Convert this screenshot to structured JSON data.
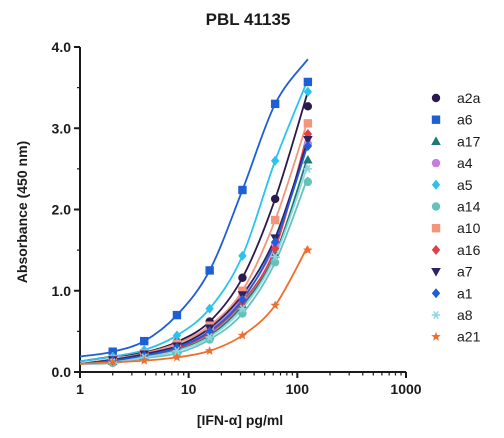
{
  "chart_data": {
    "type": "scatter",
    "title": "PBL 41135",
    "xlabel": "[IFN-α] pg/ml",
    "ylabel": "Absorbance (450 nm)",
    "x_scale": "log",
    "xlim": [
      1,
      1000
    ],
    "ylim": [
      0,
      4
    ],
    "x_ticks": [
      1,
      10,
      100,
      1000
    ],
    "x_tick_labels": [
      "1",
      "10",
      "100",
      "1000"
    ],
    "y_ticks": [
      0,
      1,
      2,
      3,
      4
    ],
    "y_tick_labels": [
      "0.0",
      "1.0",
      "2.0",
      "3.0",
      "4.0"
    ],
    "legend_position": "right",
    "grid": false,
    "x": [
      2,
      3.9,
      7.8,
      15.6,
      31.25,
      62.5,
      125
    ],
    "series": [
      {
        "name": "a2a",
        "color": "#2a1a4e",
        "marker": "circle",
        "values": [
          0.19,
          0.24,
          0.37,
          0.62,
          1.16,
          2.13,
          3.27
        ],
        "fit_end": 3.45
      },
      {
        "name": "a6",
        "color": "#1e5fd6",
        "marker": "square",
        "values": [
          0.25,
          0.38,
          0.7,
          1.25,
          2.24,
          3.3,
          3.57
        ],
        "fit_end": 3.85
      },
      {
        "name": "a17",
        "color": "#1f7a76",
        "marker": "triangle",
        "values": [
          0.13,
          0.19,
          0.27,
          0.45,
          0.82,
          1.45,
          2.61
        ],
        "fit_end": 2.65
      },
      {
        "name": "a4",
        "color": "#c77de0",
        "marker": "circle",
        "values": [
          0.15,
          0.21,
          0.31,
          0.51,
          0.91,
          1.58,
          2.81
        ],
        "fit_end": 2.9
      },
      {
        "name": "a5",
        "color": "#2bc3ee",
        "marker": "diamond",
        "values": [
          0.19,
          0.27,
          0.45,
          0.78,
          1.43,
          2.6,
          3.45
        ],
        "fit_end": 3.6
      },
      {
        "name": "a14",
        "color": "#63c3bb",
        "marker": "circle",
        "values": [
          0.11,
          0.17,
          0.23,
          0.4,
          0.72,
          1.35,
          2.34
        ],
        "fit_end": 2.4
      },
      {
        "name": "a10",
        "color": "#f2957b",
        "marker": "square",
        "values": [
          0.16,
          0.23,
          0.35,
          0.57,
          1.0,
          1.87,
          3.06
        ],
        "fit_end": 3.1
      },
      {
        "name": "a16",
        "color": "#e53d45",
        "marker": "diamond",
        "values": [
          0.14,
          0.2,
          0.29,
          0.48,
          0.86,
          1.52,
          2.93
        ],
        "fit_end": 2.95
      },
      {
        "name": "a7",
        "color": "#2a2466",
        "marker": "triangle_down",
        "values": [
          0.15,
          0.22,
          0.32,
          0.54,
          0.95,
          1.65,
          2.86
        ],
        "fit_end": 2.85
      },
      {
        "name": "a1",
        "color": "#1f5ed6",
        "marker": "diamond",
        "values": [
          0.14,
          0.2,
          0.3,
          0.5,
          0.89,
          1.6,
          2.78
        ],
        "fit_end": 2.8
      },
      {
        "name": "a8",
        "color": "#8fd6e4",
        "marker": "asterisk",
        "values": [
          0.12,
          0.18,
          0.26,
          0.43,
          0.78,
          1.42,
          2.5
        ],
        "fit_end": 2.55
      },
      {
        "name": "a21",
        "color": "#ef6e2c",
        "marker": "star",
        "values": [
          0.12,
          0.14,
          0.18,
          0.26,
          0.45,
          0.82,
          1.5
        ],
        "fit_end": 1.55
      }
    ]
  }
}
